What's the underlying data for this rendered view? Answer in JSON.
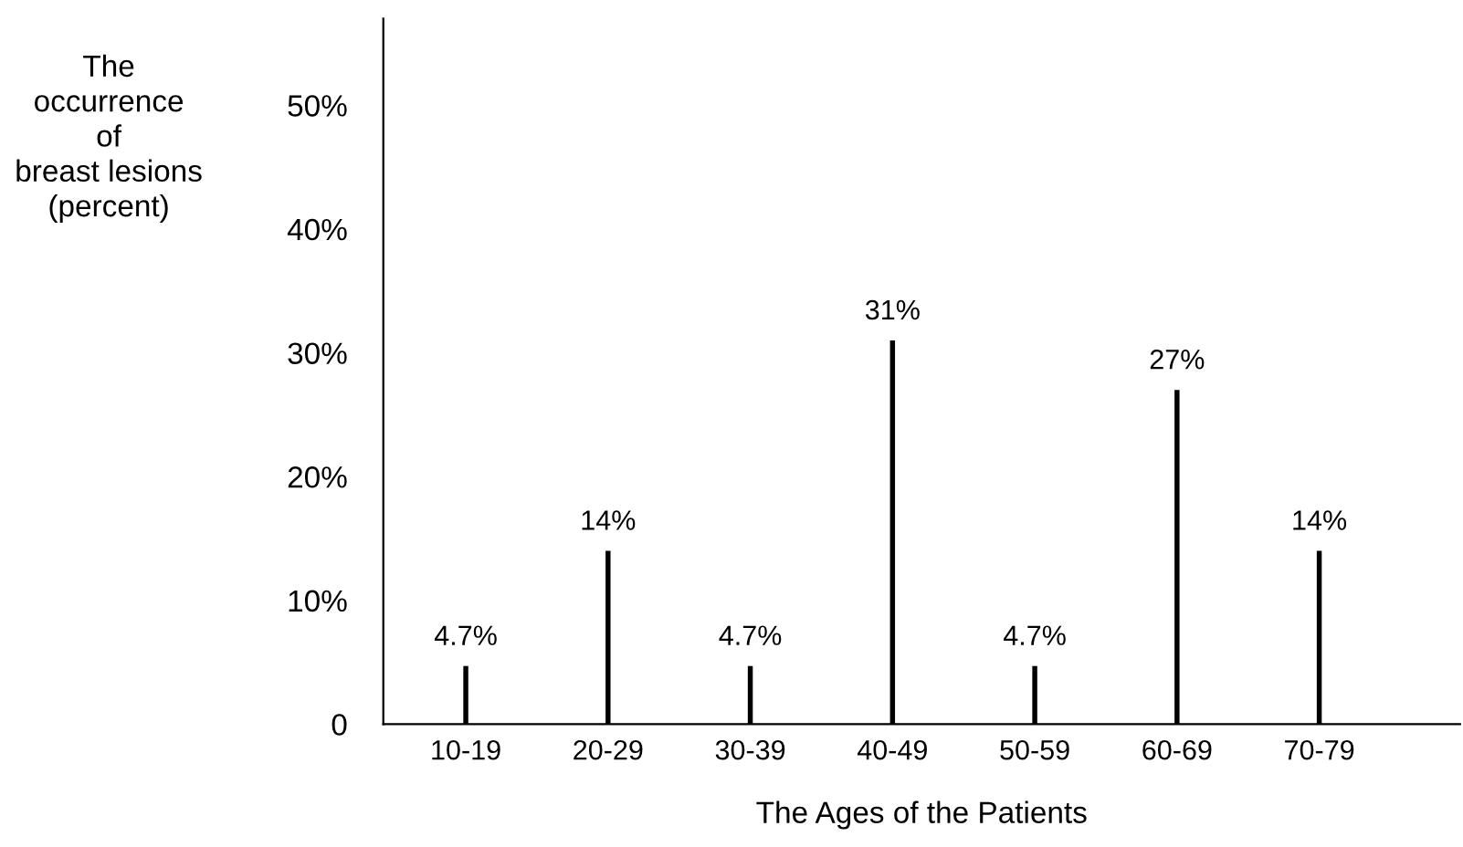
{
  "chart_data": {
    "type": "bar",
    "xlabel": "The Ages of the Patients",
    "ylabel": "The\noccurrence\nof\nbreast lesions\n(percent)",
    "categories": [
      "10-19",
      "20-29",
      "30-39",
      "40-49",
      "50-59",
      "60-69",
      "70-79"
    ],
    "values": [
      4.7,
      14,
      4.7,
      31,
      4.7,
      27,
      14
    ],
    "value_labels": [
      "4.7%",
      "14%",
      "4.7%",
      "31%",
      "4.7%",
      "27%",
      "14%"
    ],
    "color": "#000000",
    "ylim": [
      0,
      57
    ],
    "yticks": [
      0,
      {
        "value": 10,
        "label": "10%"
      },
      {
        "value": 20,
        "label": "20%"
      },
      {
        "value": 30,
        "label": "30%"
      },
      {
        "value": 40,
        "label": "40%"
      },
      {
        "value": 50,
        "label": "50%"
      }
    ],
    "grid": false,
    "legend": false
  }
}
